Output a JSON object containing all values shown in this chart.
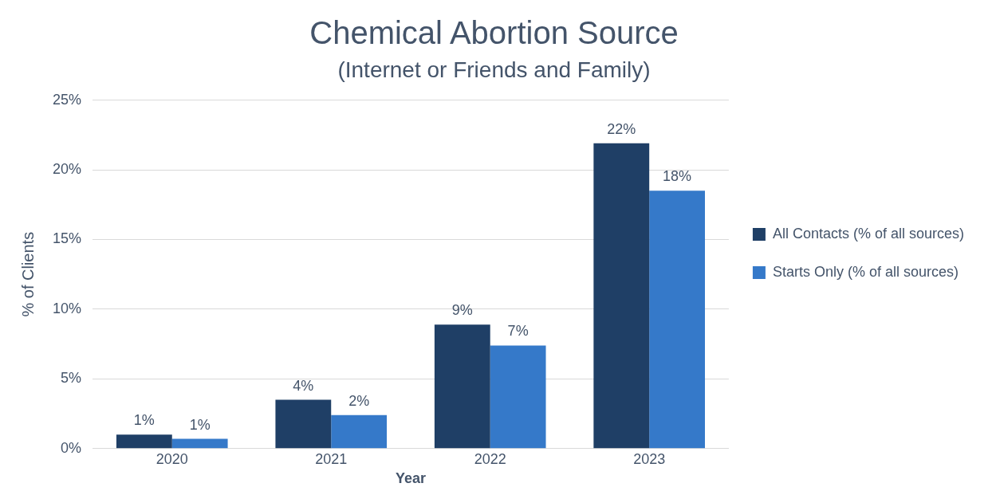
{
  "chart_data": {
    "type": "bar",
    "title": "Chemical Abortion Source",
    "subtitle": "(Internet or Friends and Family)",
    "xlabel": "Year",
    "ylabel": "% of Clients",
    "categories": [
      "2020",
      "2021",
      "2022",
      "2023"
    ],
    "series": [
      {
        "name": "All Contacts (% of all sources)",
        "color": "#1f3f66",
        "values": [
          1.0,
          3.5,
          8.9,
          21.9
        ],
        "value_labels": [
          "1%",
          "4%",
          "9%",
          "22%"
        ]
      },
      {
        "name": "Starts Only (% of all sources)",
        "color": "#3579c9",
        "values": [
          0.7,
          2.4,
          7.4,
          18.5
        ],
        "value_labels": [
          "1%",
          "2%",
          "7%",
          "18%"
        ]
      }
    ],
    "ylim": [
      0,
      25
    ],
    "yticks": [
      {
        "value": 0,
        "label": "0%"
      },
      {
        "value": 5,
        "label": "5%"
      },
      {
        "value": 10,
        "label": "10%"
      },
      {
        "value": 15,
        "label": "15%"
      },
      {
        "value": 20,
        "label": "20%"
      },
      {
        "value": 25,
        "label": "25%"
      }
    ],
    "grid": "y",
    "legend": "right"
  }
}
